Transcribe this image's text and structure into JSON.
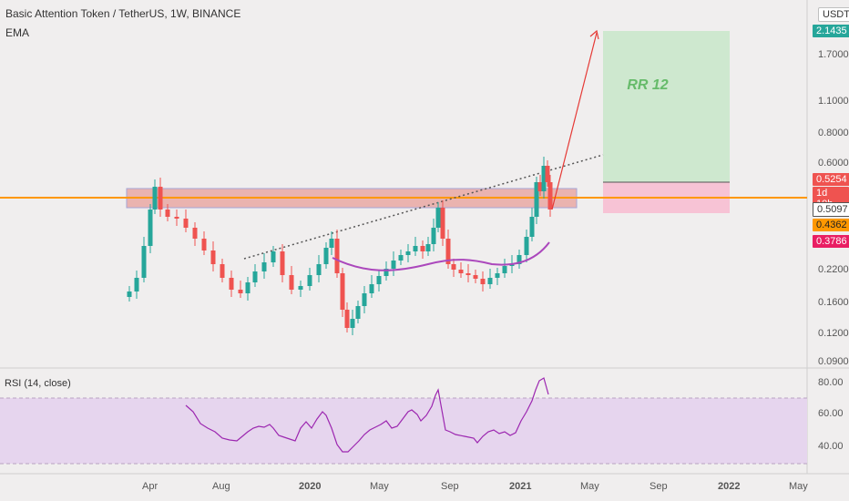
{
  "chart": {
    "title": "Basic Attention Token / TetherUS, 1W, BINANCE",
    "indicators": [
      "EMA"
    ],
    "rsi_label": "RSI (14, close)",
    "axis_unit": "USDT",
    "rr_label": "RR 12",
    "y_axis_labels": [
      "1.7000",
      "1.1000",
      "0.8000",
      "0.6000",
      "0.2200",
      "0.1600",
      "0.1200",
      "0.0900"
    ],
    "price_tags": {
      "target": "2.1435",
      "current": "0.5254",
      "countdown": "1d 10h",
      "horizontal_line": "0.5097",
      "tag_orange": "0.4362",
      "tag_pink": "0.3786"
    },
    "rsi_axis_labels": [
      "80.00",
      "60.00",
      "40.00"
    ],
    "x_axis_labels": [
      "Apr",
      "Aug",
      "2020",
      "May",
      "Sep",
      "2021",
      "May",
      "Sep",
      "2022",
      "May"
    ]
  },
  "colors": {
    "background": "#f0eeee",
    "up_candle": "#26a69a",
    "down_candle": "#ef5350",
    "ema_line": "#ab47bc",
    "rsi_line": "#9c27b0",
    "horizontal_line": "#ff9800",
    "resistance_zone": "#e8a09a",
    "target_box": "#c8e6c9",
    "stop_box": "#f8bbd0",
    "arrow": "#e53935",
    "rr_text": "#66bb6a"
  },
  "chart_data": {
    "type": "candlestick",
    "timeframe": "1W",
    "series": [
      {
        "name": "Basic Attention Token / TetherUS",
        "kind": "candles"
      },
      {
        "name": "EMA",
        "kind": "line"
      },
      {
        "name": "RSI (14, close)",
        "kind": "line",
        "pane": "rsi"
      }
    ],
    "price_axis": {
      "scale": "log",
      "labels": [
        1.7,
        1.1,
        0.8,
        0.6,
        0.22,
        0.16,
        0.12,
        0.09
      ]
    },
    "rsi_axis": {
      "labels": [
        80,
        60,
        40
      ]
    },
    "x_labels": [
      "Apr",
      "Aug",
      "2020",
      "May",
      "Sep",
      "2021",
      "May",
      "Sep",
      "2022",
      "May"
    ],
    "price_lines": [
      {
        "value": 0.5097,
        "label": "0.5097"
      }
    ],
    "price_tags": [
      2.1435,
      0.5254,
      0.5097,
      0.4362,
      0.3786
    ],
    "risk_reward": {
      "label": "RR 12",
      "target": 2.1435
    }
  }
}
